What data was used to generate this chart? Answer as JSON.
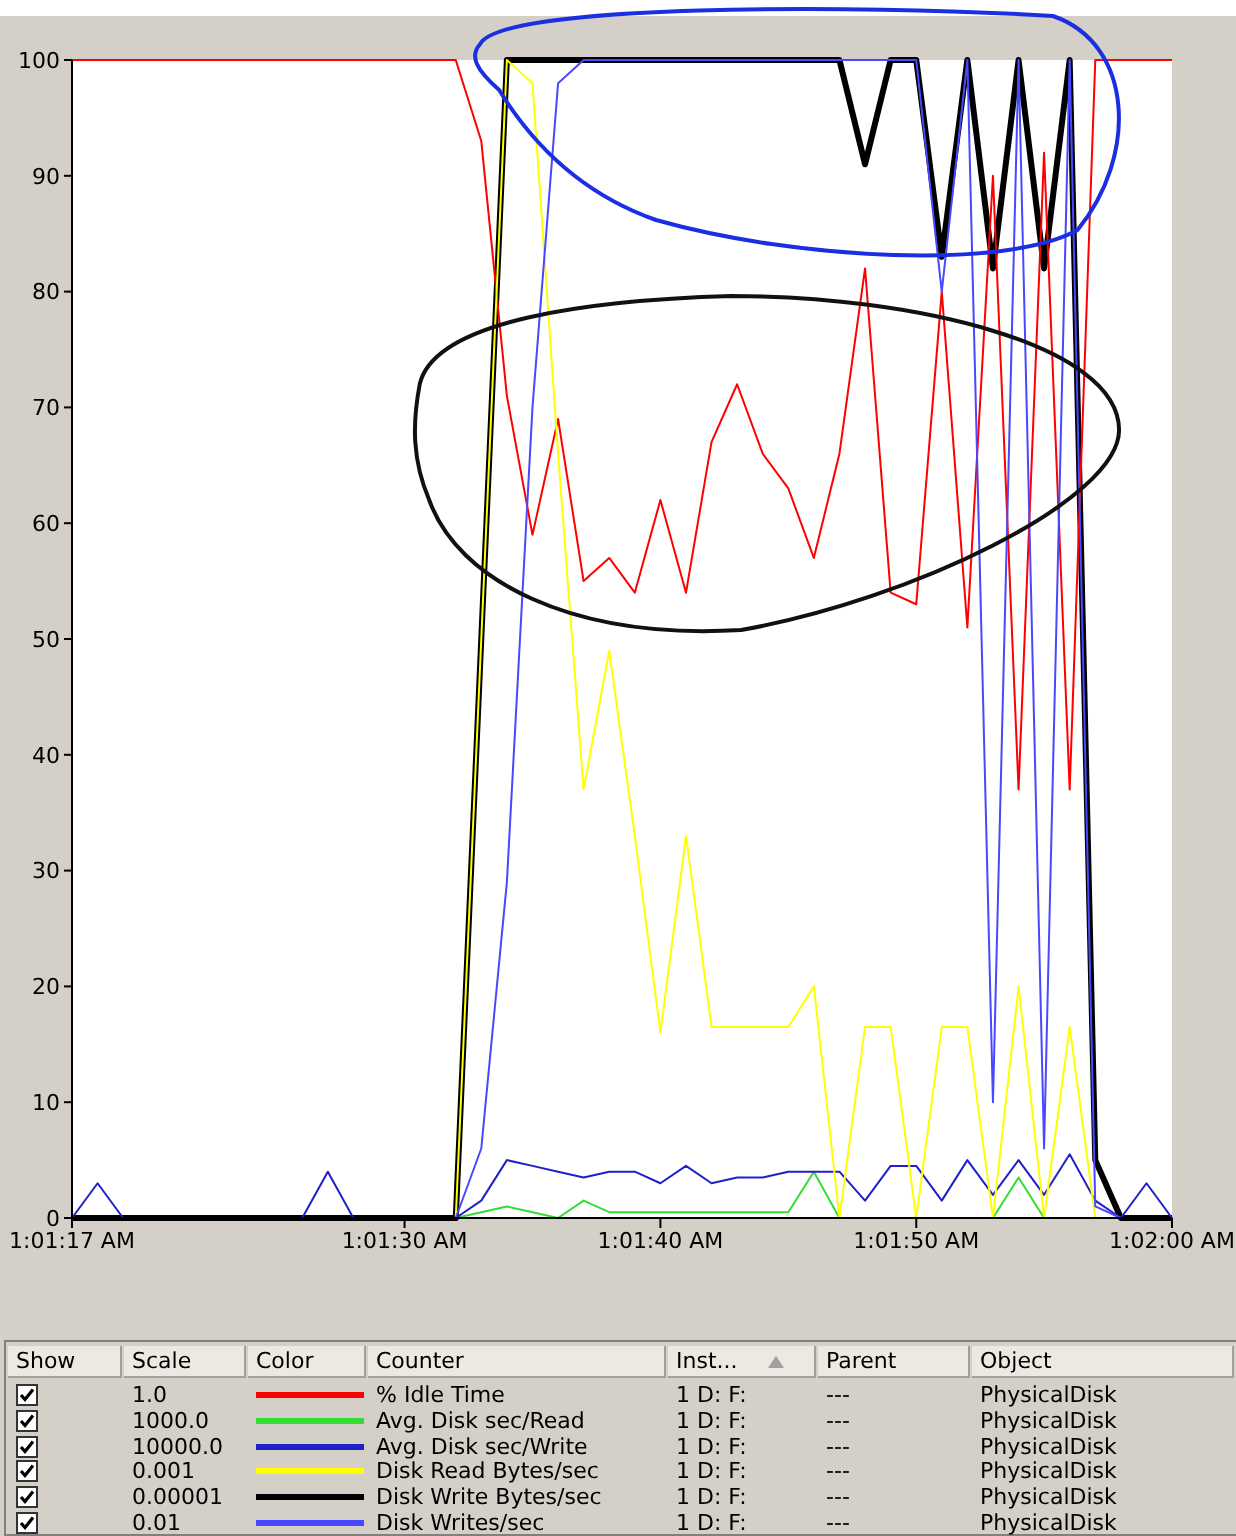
{
  "chart_data": {
    "type": "line",
    "x": [
      1.021389,
      1.021667,
      1.021944,
      1.022222,
      1.0225,
      1.022778,
      1.023056,
      1.023333,
      1.023611,
      1.023889,
      1.024167,
      1.024444,
      1.024722,
      1.025,
      1.025278,
      1.025556,
      1.025833,
      1.026111,
      1.026389,
      1.026667,
      1.026944,
      1.027222,
      1.0275,
      1.027778,
      1.028056,
      1.028333,
      1.028611,
      1.028889,
      1.029167,
      1.029444,
      1.029722,
      1.03,
      1.030278,
      1.030556,
      1.030833,
      1.031111,
      1.031389,
      1.031667,
      1.031944,
      1.032222,
      1.0325,
      1.032778,
      1.033056,
      1.033333
    ],
    "series": [
      {
        "name": "% Idle Time",
        "color": "#ff0000",
        "values": [
          100,
          100,
          100,
          100,
          100,
          100,
          100,
          100,
          100,
          100,
          100,
          100,
          100,
          100,
          100,
          100,
          93,
          71,
          59,
          69,
          55,
          57,
          54,
          62,
          54,
          67,
          72,
          66,
          63,
          57,
          66,
          82,
          54,
          53,
          80,
          51,
          90,
          37,
          92,
          37,
          100,
          100,
          100,
          100
        ]
      },
      {
        "name": "Avg. Disk sec/Read",
        "color": "#33dd33",
        "values": [
          null,
          null,
          null,
          null,
          null,
          null,
          null,
          null,
          null,
          null,
          null,
          null,
          null,
          null,
          null,
          0,
          0.5,
          1,
          0.5,
          0,
          1.5,
          0.5,
          0.5,
          0.5,
          0.5,
          0.5,
          0.5,
          0.5,
          0.5,
          4,
          0,
          null,
          null,
          null,
          null,
          null,
          0,
          3.5,
          0,
          null,
          null,
          null,
          null,
          null
        ]
      },
      {
        "name": "Avg. Disk sec/Write",
        "color": "#2020c8",
        "values": [
          0,
          3,
          0,
          0,
          0,
          0,
          0,
          0,
          0,
          0,
          4,
          0,
          0,
          0,
          0,
          0,
          1.5,
          5,
          4.5,
          4,
          3.5,
          4,
          4,
          3,
          4.5,
          3,
          3.5,
          3.5,
          4,
          4,
          4,
          1.5,
          4.5,
          4.5,
          1.5,
          5,
          2,
          5,
          2,
          5.5,
          1.5,
          0,
          3,
          0
        ]
      },
      {
        "name": "Disk Read Bytes/sec",
        "color": "#ffff00",
        "values": [
          null,
          null,
          null,
          null,
          null,
          null,
          null,
          null,
          null,
          null,
          null,
          null,
          null,
          null,
          0,
          0,
          50,
          100,
          98,
          66,
          37,
          49,
          33,
          16,
          33,
          16.5,
          16.5,
          16.5,
          16.5,
          20,
          0,
          16.5,
          16.5,
          0,
          16.5,
          16.5,
          0,
          20,
          0,
          16.5,
          0,
          0,
          null,
          null
        ]
      },
      {
        "name": "Disk Write Bytes/sec",
        "color": "#000000",
        "values": [
          0,
          0,
          0,
          0,
          0,
          0,
          0,
          0,
          0,
          0,
          0,
          0,
          0,
          0,
          0,
          0,
          50,
          100,
          100,
          100,
          100,
          100,
          100,
          100,
          100,
          100,
          100,
          100,
          100,
          100,
          100,
          91,
          100,
          100,
          83,
          100,
          82,
          100,
          82,
          100,
          5,
          0,
          0,
          0
        ]
      },
      {
        "name": "Disk Writes/sec",
        "color": "#4848ff",
        "values": [
          0,
          0,
          0,
          0,
          0,
          0,
          0,
          0,
          0,
          0,
          0,
          0,
          0,
          0,
          0,
          0,
          6,
          29,
          70,
          98,
          100,
          100,
          100,
          100,
          100,
          100,
          100,
          100,
          100,
          100,
          100,
          100,
          100,
          100,
          80,
          100,
          10,
          100,
          6,
          100,
          1,
          0,
          0,
          0
        ]
      }
    ],
    "xlim": [
      1.021389,
      1.033333
    ],
    "xticks": [
      {
        "value": 1.021389,
        "label": "1:01:17 AM"
      },
      {
        "value": 1.025,
        "label": "1:01:30 AM"
      },
      {
        "value": 1.027778,
        "label": "1:01:40 AM"
      },
      {
        "value": 1.030556,
        "label": "1:01:50 AM"
      },
      {
        "value": 1.033333,
        "label": "1:02:00 AM"
      }
    ],
    "ylim": [
      0,
      100
    ],
    "yticks": [
      0,
      10,
      20,
      30,
      40,
      50,
      60,
      70,
      80,
      90,
      100
    ],
    "legend": "bottom",
    "marker": "none",
    "line_style": "solid",
    "annotations": [
      "Show",
      "Scale",
      "Color",
      "Counter",
      "Inst...",
      "Parent",
      "Object",
      "1.0",
      "1 D: F:",
      "---",
      "PhysicalDisk",
      "1000.0",
      "1 D: F:",
      "---",
      "PhysicalDisk",
      "10000.0",
      "1 D: F:",
      "---",
      "PhysicalDisk",
      "0.001",
      "1 D: F:",
      "---",
      "PhysicalDisk",
      "0.00001",
      "1 D: F:",
      "---",
      "PhysicalDisk",
      "0.01",
      "1 D: F:",
      "---",
      "PhysicalDisk"
    ]
  }
}
